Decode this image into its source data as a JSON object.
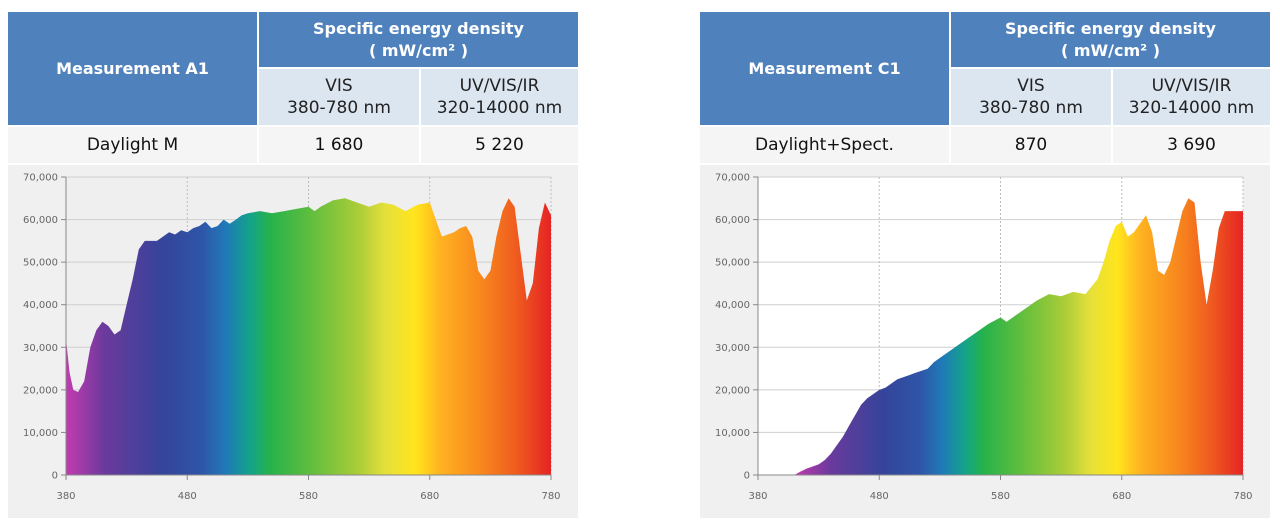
{
  "tables": [
    {
      "measurement": "Measurement A1",
      "header": "Specific energy density",
      "unit": "( mW/cm² )",
      "col1": {
        "name": "VIS",
        "range": "380-780 nm"
      },
      "col2": {
        "name": "UV/VIS/IR",
        "range": "320-14000 nm"
      },
      "row": {
        "label": "Daylight M",
        "vis": "1 680",
        "full": "5 220"
      }
    },
    {
      "measurement": "Measurement C1",
      "header": "Specific energy density",
      "unit": "( mW/cm² )",
      "col1": {
        "name": "VIS",
        "range": "380-780 nm"
      },
      "col2": {
        "name": "UV/VIS/IR",
        "range": "320-14000 nm"
      },
      "row": {
        "label": "Daylight+Spect.",
        "vis": "870",
        "full": "3 690"
      }
    }
  ],
  "chart_data": [
    {
      "type": "area",
      "title": "",
      "xlabel": "",
      "ylabel": "",
      "xlim": [
        380,
        780
      ],
      "ylim": [
        0,
        70000
      ],
      "x_ticks": [
        "380",
        "480",
        "580",
        "680",
        "780"
      ],
      "y_ticks": [
        "0",
        "10,000",
        "20,000",
        "30,000",
        "40,000",
        "50,000",
        "60,000",
        "70,000"
      ],
      "grid": true,
      "fill": "visible-spectrum-gradient",
      "x": [
        380,
        383,
        386,
        390,
        395,
        400,
        405,
        410,
        415,
        420,
        425,
        430,
        435,
        440,
        445,
        450,
        455,
        460,
        465,
        470,
        475,
        480,
        485,
        490,
        495,
        500,
        505,
        510,
        515,
        520,
        525,
        530,
        540,
        550,
        560,
        570,
        580,
        585,
        590,
        600,
        610,
        620,
        630,
        640,
        650,
        660,
        670,
        680,
        685,
        690,
        700,
        705,
        710,
        715,
        720,
        725,
        730,
        735,
        740,
        745,
        750,
        755,
        760,
        765,
        770,
        775,
        780
      ],
      "values": [
        32000,
        24000,
        20000,
        19500,
        22000,
        30000,
        34000,
        36000,
        35000,
        33000,
        34000,
        40000,
        46000,
        53000,
        55000,
        55000,
        55000,
        56000,
        57000,
        56500,
        57500,
        57000,
        58000,
        58500,
        59500,
        58000,
        58500,
        60000,
        59000,
        60000,
        61000,
        61500,
        62000,
        61500,
        62000,
        62500,
        63000,
        62000,
        63000,
        64500,
        65000,
        64000,
        63000,
        64000,
        63500,
        62000,
        63500,
        64000,
        60000,
        56000,
        57000,
        58000,
        58500,
        56000,
        48000,
        46000,
        48000,
        56000,
        62000,
        65000,
        63000,
        52000,
        41000,
        45000,
        58000,
        64000,
        61000
      ]
    },
    {
      "type": "area",
      "title": "",
      "xlabel": "",
      "ylabel": "",
      "xlim": [
        380,
        780
      ],
      "ylim": [
        0,
        70000
      ],
      "x_ticks": [
        "380",
        "480",
        "580",
        "680",
        "780"
      ],
      "y_ticks": [
        "0",
        "10,000",
        "20,000",
        "30,000",
        "40,000",
        "50,000",
        "60,000",
        "70,000"
      ],
      "grid": true,
      "fill": "visible-spectrum-gradient",
      "x": [
        410,
        415,
        420,
        425,
        430,
        435,
        440,
        445,
        450,
        455,
        460,
        465,
        470,
        475,
        480,
        485,
        490,
        495,
        500,
        505,
        510,
        515,
        520,
        525,
        530,
        540,
        550,
        560,
        570,
        580,
        585,
        590,
        600,
        610,
        620,
        630,
        640,
        650,
        660,
        665,
        670,
        675,
        680,
        685,
        690,
        695,
        700,
        705,
        710,
        715,
        720,
        725,
        730,
        735,
        740,
        745,
        750,
        755,
        760,
        765,
        770,
        775,
        780
      ],
      "values": [
        0,
        800,
        1500,
        2000,
        2500,
        3500,
        5000,
        7000,
        9000,
        11500,
        14000,
        16500,
        18000,
        19000,
        20000,
        20500,
        21500,
        22500,
        23000,
        23500,
        24000,
        24500,
        25000,
        26500,
        27500,
        29500,
        31500,
        33500,
        35500,
        37000,
        36000,
        37000,
        39000,
        41000,
        42500,
        42000,
        43000,
        42500,
        46000,
        50000,
        55000,
        58500,
        59500,
        56000,
        57000,
        59000,
        61000,
        57000,
        48000,
        47000,
        50000,
        56000,
        62000,
        65000,
        64000,
        50000,
        40000,
        48000,
        58000,
        62000,
        62000,
        62000,
        62000
      ]
    }
  ]
}
